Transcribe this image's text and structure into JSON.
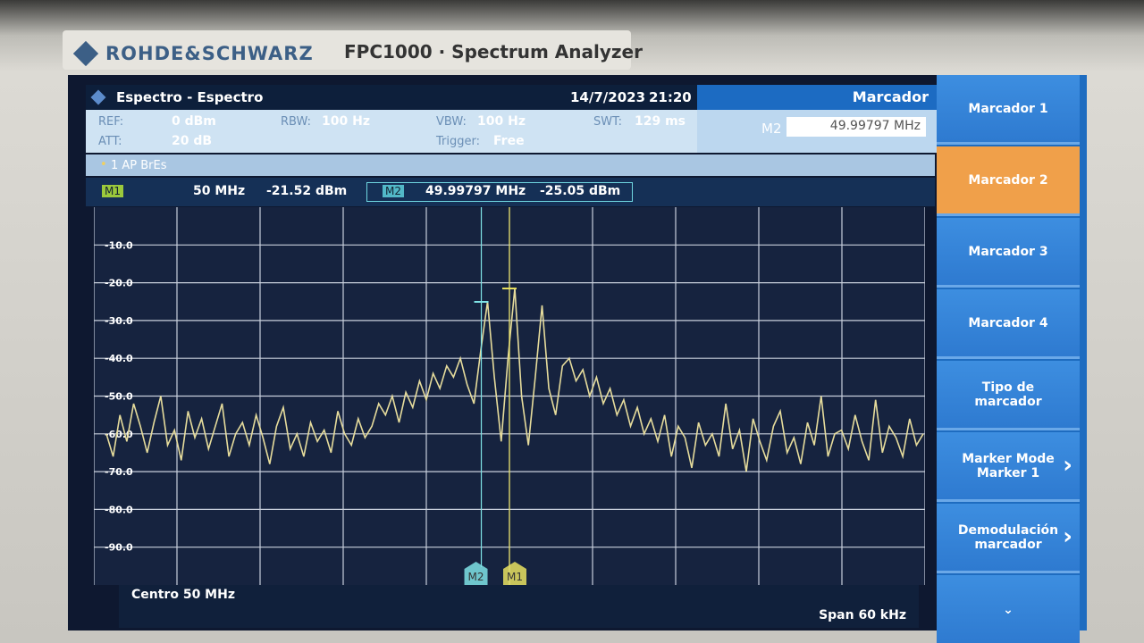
{
  "header": {
    "brand": "ROHDE&SCHWARZ",
    "model": "FPC1000 · Spectrum Analyzer",
    "mode": "Espectro - Espectro",
    "date": "14/7/2023",
    "time": "21:20"
  },
  "status": [
    {
      "label": "REF:",
      "value": "0 dBm"
    },
    {
      "label": "ATT:",
      "value": "20 dB"
    },
    {
      "label": "RBW:",
      "value": "100 Hz"
    },
    {
      "label": "VBW:",
      "value": "100 Hz"
    },
    {
      "label": "Trigger:",
      "value": "Free"
    },
    {
      "label": "SWT:",
      "value": "129 ms"
    }
  ],
  "trace_info": "1 AP BrEs",
  "panel": {
    "title": "Marcador",
    "input_label": "M2",
    "input_value": "49.99797 MHz"
  },
  "softkeys": [
    "Marcador 1",
    "Marcador 2",
    "Marcador 3",
    "Marcador 4",
    "Tipo de marcador",
    "Marker Mode Marker 1",
    "Demodulación marcador"
  ],
  "footer": {
    "center": "Centro 50 MHz",
    "span": "Span 60 kHz"
  },
  "chart_data": {
    "type": "line",
    "color": "#e6dc9c",
    "grid": true,
    "ylim": [
      -100,
      0
    ],
    "xlim": [
      49.97,
      50.03
    ],
    "yticks": [
      {
        "value": -10,
        "label": "-10.0"
      },
      {
        "value": -20,
        "label": "-20.0"
      },
      {
        "value": -30,
        "label": "-30.0"
      },
      {
        "value": -40,
        "label": "-40.0"
      },
      {
        "value": -50,
        "label": "-50.0"
      },
      {
        "value": -60,
        "label": "-60.0"
      },
      {
        "value": -70,
        "label": "-70.0"
      },
      {
        "value": -80,
        "label": "-80.0"
      },
      {
        "value": -90,
        "label": "-90.0"
      }
    ],
    "values": [
      -60,
      -66,
      -55,
      -62,
      -52,
      -58,
      -65,
      -57,
      -50,
      -63,
      -59,
      -67,
      -54,
      -61,
      -56,
      -64,
      -58,
      -52,
      -66,
      -60,
      -57,
      -63,
      -55,
      -61,
      -68,
      -58,
      -53,
      -64,
      -60,
      -66,
      -57,
      -62,
      -59,
      -65,
      -54,
      -60,
      -63,
      -56,
      -61,
      -58,
      -52,
      -55,
      -50,
      -57,
      -49,
      -53,
      -46,
      -51,
      -44,
      -48,
      -42,
      -45,
      -40,
      -47,
      -52,
      -38,
      -25,
      -45,
      -62,
      -40,
      -21.5,
      -50,
      -63,
      -45,
      -26,
      -48,
      -55,
      -42,
      -40,
      -46,
      -43,
      -50,
      -45,
      -52,
      -48,
      -55,
      -51,
      -58,
      -53,
      -60,
      -56,
      -62,
      -55,
      -66,
      -58,
      -61,
      -69,
      -57,
      -63,
      -60,
      -66,
      -52,
      -64,
      -59,
      -70,
      -56,
      -62,
      -67,
      -58,
      -54,
      -65,
      -61,
      -68,
      -57,
      -63,
      -50,
      -66,
      -60,
      -59,
      -64,
      -55,
      -62,
      -67,
      -51,
      -65,
      -58,
      -61,
      -66,
      -56,
      -63,
      -60
    ],
    "markers": [
      {
        "name": "M1",
        "x": 50,
        "y": -21.52,
        "freq_label": "50 MHz",
        "level_label": "-21.52 dBm",
        "color": "#e8e060"
      },
      {
        "name": "M2",
        "x": 49.99797,
        "y": -25.05,
        "freq_label": "49.99797 MHz",
        "level_label": "-25.05 dBm",
        "color": "#7fe3e6"
      }
    ]
  }
}
